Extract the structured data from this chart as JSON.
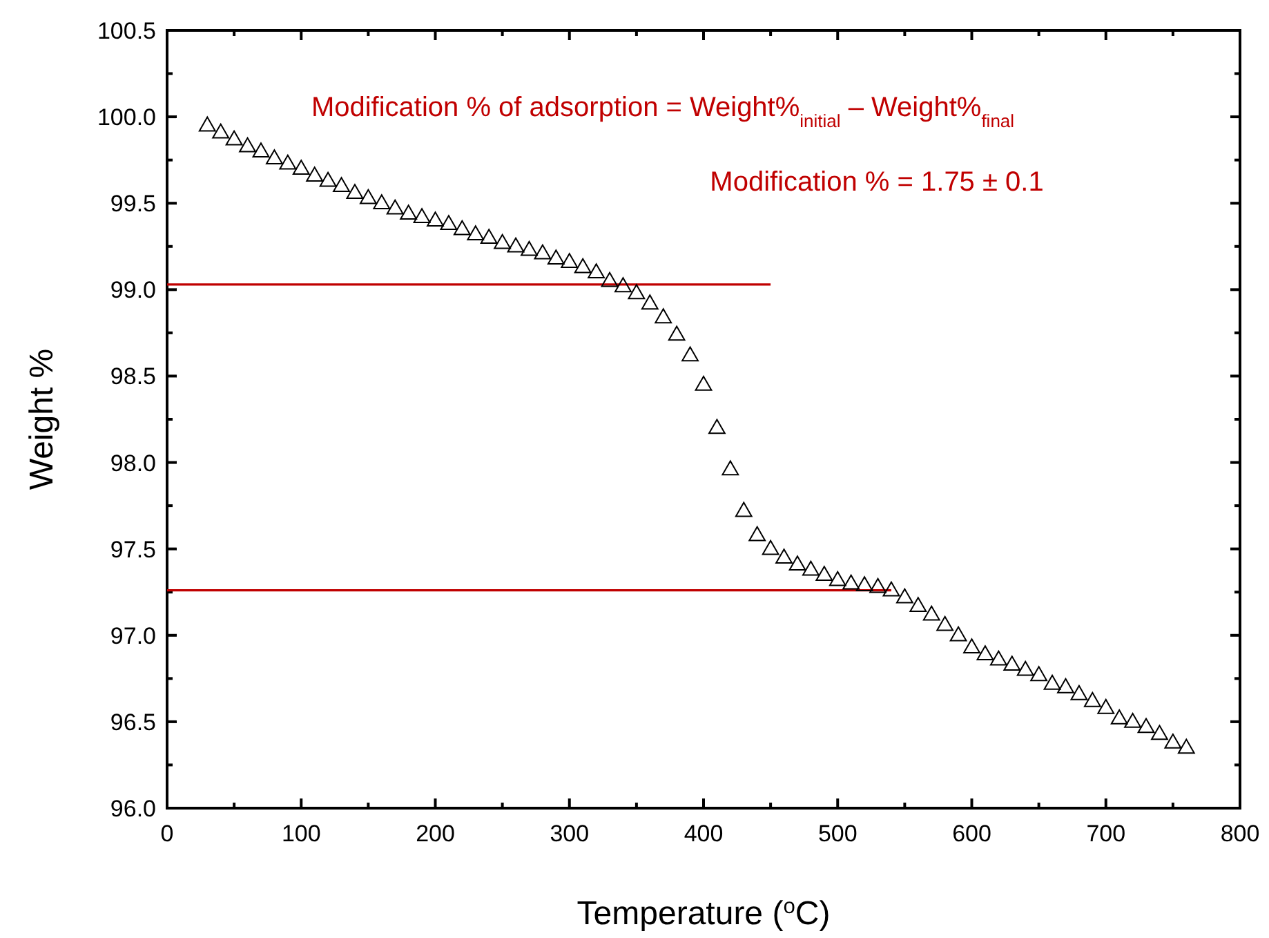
{
  "chart_data": {
    "type": "scatter",
    "xlabel": "Temperature ($^{o}$C)",
    "ylabel": "Weight %",
    "annotations": [
      "Modification % of adsorption = Weight%$_{initial}$ – Weight%$_{final}$",
      "Modification % = 1.75 ± 0.1"
    ],
    "xlim": [
      0,
      800
    ],
    "ylim": [
      96,
      100.5
    ],
    "xticks": [
      0,
      {
        "value": 50,
        "label": null
      },
      100,
      {
        "value": 150,
        "label": null
      },
      200,
      {
        "value": 250,
        "label": null
      },
      300,
      {
        "value": 350,
        "label": null
      },
      400,
      {
        "value": 450,
        "label": null
      },
      500,
      {
        "value": 550,
        "label": null
      },
      600,
      {
        "value": 650,
        "label": null
      },
      700,
      {
        "value": 750,
        "label": null
      },
      800
    ],
    "yticks": [
      {
        "value": 96,
        "label": "96.0"
      },
      {
        "value": 96.25,
        "label": null
      },
      96.5,
      {
        "value": 96.75,
        "label": null
      },
      {
        "value": 97,
        "label": "97.0"
      },
      {
        "value": 97.25,
        "label": null
      },
      97.5,
      {
        "value": 97.75,
        "label": null
      },
      {
        "value": 98,
        "label": "98.0"
      },
      {
        "value": 98.25,
        "label": null
      },
      98.5,
      {
        "value": 98.75,
        "label": null
      },
      {
        "value": 99,
        "label": "99.0"
      },
      {
        "value": 99.25,
        "label": null
      },
      99.5,
      {
        "value": 99.75,
        "label": null
      },
      {
        "value": 100,
        "label": "100.0"
      },
      {
        "value": 100.25,
        "label": null
      },
      100.5
    ],
    "grid": false,
    "series": [
      {
        "type": "line",
        "color": "#c00000",
        "marker": "none",
        "x": [
          0,
          450
        ],
        "values": [
          99.03,
          99.03
        ]
      },
      {
        "type": "line",
        "color": "#c00000",
        "marker": "none",
        "x": [
          0,
          540
        ],
        "values": [
          97.26,
          97.26
        ]
      },
      {
        "color": "#000000",
        "marker": "triangle",
        "x": [
          30,
          40,
          50,
          60,
          70,
          80,
          90,
          100,
          110,
          120,
          130,
          140,
          150,
          160,
          170,
          180,
          190,
          200,
          210,
          220,
          230,
          240,
          250,
          260,
          270,
          280,
          290,
          300,
          310,
          320,
          330,
          340,
          350,
          360,
          370,
          380,
          390,
          400,
          410,
          420,
          430,
          440,
          450,
          460,
          470,
          480,
          490,
          500,
          510,
          520,
          530,
          540,
          550,
          560,
          570,
          580,
          590,
          600,
          610,
          620,
          630,
          640,
          650,
          660,
          670,
          680,
          690,
          700,
          710,
          720,
          730,
          740,
          750,
          760
        ],
        "values": [
          99.95,
          99.91,
          99.87,
          99.83,
          99.8,
          99.76,
          99.73,
          99.7,
          99.66,
          99.63,
          99.6,
          99.56,
          99.53,
          99.5,
          99.47,
          99.44,
          99.42,
          99.4,
          99.38,
          99.35,
          99.32,
          99.3,
          99.27,
          99.25,
          99.23,
          99.21,
          99.18,
          99.16,
          99.13,
          99.1,
          99.05,
          99.02,
          98.98,
          98.92,
          98.84,
          98.74,
          98.62,
          98.45,
          98.2,
          97.96,
          97.72,
          97.58,
          97.5,
          97.45,
          97.41,
          97.38,
          97.35,
          97.32,
          97.3,
          97.29,
          97.28,
          97.26,
          97.22,
          97.17,
          97.12,
          97.06,
          97.0,
          96.93,
          96.89,
          96.86,
          96.83,
          96.8,
          96.77,
          96.72,
          96.7,
          96.66,
          96.62,
          96.58,
          96.52,
          96.5,
          96.47,
          96.43,
          96.38,
          96.35
        ]
      }
    ]
  }
}
